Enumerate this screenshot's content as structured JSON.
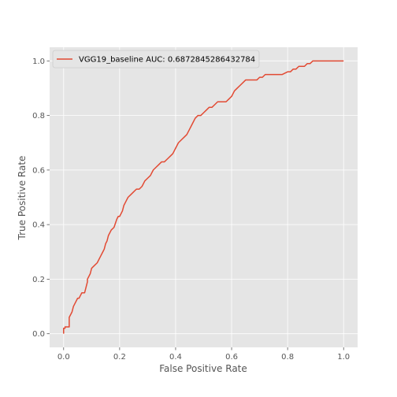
{
  "chart_data": {
    "type": "line",
    "xlabel": "False Positive Rate",
    "ylabel": "True Positive Rate",
    "xlim": [
      -0.05,
      1.05
    ],
    "ylim": [
      -0.05,
      1.05
    ],
    "x_ticks": [
      0.0,
      0.2,
      0.4,
      0.6,
      0.8,
      1.0
    ],
    "y_ticks": [
      0.0,
      0.2,
      0.4,
      0.6,
      0.8,
      1.0
    ],
    "x_tick_labels": [
      "0.0",
      "0.2",
      "0.4",
      "0.6",
      "0.8",
      "1.0"
    ],
    "y_tick_labels": [
      "0.0",
      "0.2",
      "0.4",
      "0.6",
      "0.8",
      "1.0"
    ],
    "grid": true,
    "legend_position": "top-left",
    "colors": {
      "background": "#e5e5e5",
      "grid": "#ffffff",
      "line": "#e24a33"
    },
    "series": [
      {
        "name": "VGG19_baseline AUC: 0.6872845286432784",
        "x": [
          0.0,
          0.0,
          0.005,
          0.005,
          0.02,
          0.02,
          0.03,
          0.035,
          0.04,
          0.05,
          0.055,
          0.06,
          0.065,
          0.075,
          0.085,
          0.085,
          0.095,
          0.1,
          0.11,
          0.12,
          0.13,
          0.14,
          0.145,
          0.15,
          0.155,
          0.16,
          0.17,
          0.18,
          0.19,
          0.195,
          0.2,
          0.21,
          0.215,
          0.22,
          0.225,
          0.23,
          0.24,
          0.25,
          0.26,
          0.27,
          0.28,
          0.29,
          0.3,
          0.31,
          0.32,
          0.33,
          0.34,
          0.35,
          0.36,
          0.37,
          0.38,
          0.39,
          0.4,
          0.41,
          0.42,
          0.43,
          0.44,
          0.45,
          0.46,
          0.47,
          0.48,
          0.49,
          0.5,
          0.51,
          0.52,
          0.53,
          0.54,
          0.55,
          0.56,
          0.57,
          0.58,
          0.59,
          0.6,
          0.61,
          0.62,
          0.63,
          0.64,
          0.65,
          0.66,
          0.67,
          0.68,
          0.69,
          0.7,
          0.71,
          0.72,
          0.73,
          0.74,
          0.75,
          0.76,
          0.78,
          0.8,
          0.81,
          0.82,
          0.83,
          0.84,
          0.85,
          0.86,
          0.87,
          0.88,
          0.89,
          0.9,
          0.91,
          0.92,
          0.95,
          0.98,
          1.0
        ],
        "y": [
          0.0,
          0.02,
          0.02,
          0.025,
          0.025,
          0.06,
          0.08,
          0.1,
          0.11,
          0.13,
          0.13,
          0.14,
          0.15,
          0.15,
          0.19,
          0.2,
          0.22,
          0.24,
          0.25,
          0.26,
          0.28,
          0.3,
          0.31,
          0.33,
          0.34,
          0.36,
          0.38,
          0.39,
          0.42,
          0.43,
          0.43,
          0.45,
          0.47,
          0.48,
          0.49,
          0.5,
          0.51,
          0.52,
          0.53,
          0.53,
          0.54,
          0.56,
          0.57,
          0.58,
          0.6,
          0.61,
          0.62,
          0.63,
          0.63,
          0.64,
          0.65,
          0.66,
          0.68,
          0.7,
          0.71,
          0.72,
          0.73,
          0.75,
          0.77,
          0.79,
          0.8,
          0.8,
          0.81,
          0.82,
          0.83,
          0.83,
          0.84,
          0.85,
          0.85,
          0.85,
          0.85,
          0.86,
          0.87,
          0.89,
          0.9,
          0.91,
          0.92,
          0.93,
          0.93,
          0.93,
          0.93,
          0.93,
          0.94,
          0.94,
          0.95,
          0.95,
          0.95,
          0.95,
          0.95,
          0.95,
          0.96,
          0.96,
          0.97,
          0.97,
          0.98,
          0.98,
          0.98,
          0.99,
          0.99,
          1.0,
          1.0,
          1.0,
          1.0,
          1.0,
          1.0,
          1.0
        ]
      }
    ]
  }
}
